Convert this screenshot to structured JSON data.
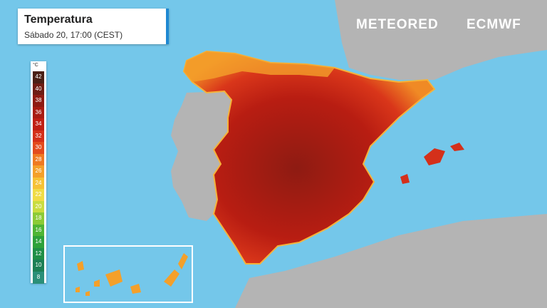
{
  "header": {
    "title": "Temperatura",
    "subtitle": "Sábado 20, 17:00 (CEST)"
  },
  "brand": {
    "provider": "METEORED",
    "model": "ECMWF"
  },
  "legend": {
    "unit": "°C",
    "ticks": [
      42,
      40,
      38,
      36,
      34,
      32,
      30,
      28,
      26,
      24,
      22,
      20,
      18,
      16,
      14,
      12,
      10,
      8
    ],
    "colors": [
      "#4a2016",
      "#6e1d14",
      "#8e1b12",
      "#a81c12",
      "#c01f14",
      "#d4301a",
      "#e34b1e",
      "#ef7a22",
      "#f4a02a",
      "#f6c235",
      "#f0dc45",
      "#c9dc3e",
      "#8ccb36",
      "#4fb534",
      "#2ea13a",
      "#1f8f46",
      "#1c7f55",
      "#2a8f78"
    ]
  }
}
